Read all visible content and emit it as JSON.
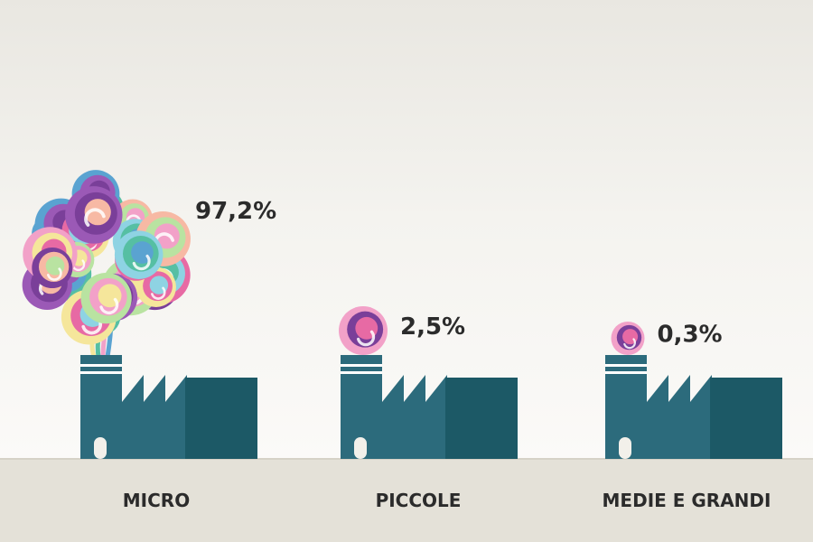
{
  "chart_data": {
    "type": "bar",
    "categories": [
      "MICRO",
      "PICCOLE",
      "MEDIE E GRANDI"
    ],
    "values": [
      97.2,
      2.5,
      0.3
    ],
    "value_labels": [
      "97,2%",
      "2,5%",
      "0,3%"
    ],
    "unit": "%",
    "legend": "none",
    "grid": false
  },
  "colors": {
    "factory_light": "#2c6b7c",
    "factory_dark": "#1c5966",
    "ground": "#e4e1d8",
    "text": "#2b2b2b",
    "swirls": [
      "#8ed3e3",
      "#f2a1c8",
      "#7a3f99",
      "#56bfa3",
      "#f5e69b",
      "#f7b9a4",
      "#5aa3d1",
      "#e76aa4",
      "#b9e3a1",
      "#9b59b6"
    ]
  }
}
